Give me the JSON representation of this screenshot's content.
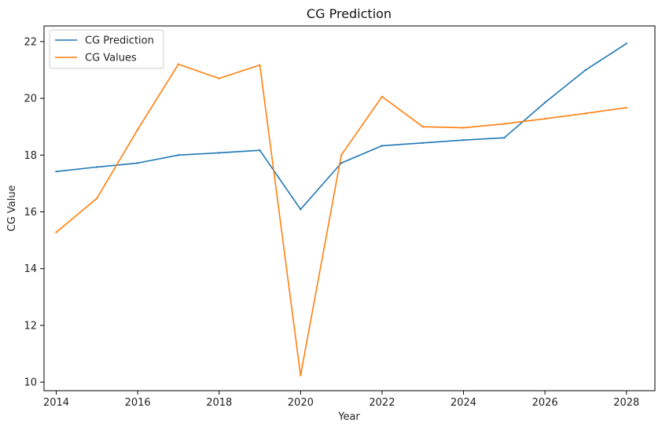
{
  "chart_data": {
    "type": "line",
    "title": "CG Prediction",
    "xlabel": "Year",
    "ylabel": "CG Value",
    "xlim": [
      2013.7,
      2028.7
    ],
    "ylim": [
      9.7,
      22.55
    ],
    "xticks": [
      2014,
      2016,
      2018,
      2020,
      2022,
      2024,
      2026,
      2028
    ],
    "yticks": [
      10,
      12,
      14,
      16,
      18,
      20,
      22
    ],
    "grid": false,
    "legend": "top-left",
    "series": [
      {
        "name": "CG Prediction",
        "color": "#1f77b4",
        "x": [
          2014,
          2015,
          2016,
          2017,
          2018,
          2019,
          2020,
          2021,
          2022,
          2023,
          2024,
          2025,
          2026,
          2027,
          2028
        ],
        "values": [
          17.42,
          17.58,
          17.72,
          18.0,
          18.08,
          18.17,
          16.09,
          17.72,
          18.33,
          18.43,
          18.53,
          18.61,
          19.85,
          21.0,
          21.93
        ]
      },
      {
        "name": "CG Values",
        "color": "#ff7f0e",
        "x": [
          2014,
          2015,
          2016,
          2017,
          2018,
          2019,
          2020,
          2021,
          2022,
          2023,
          2024,
          2025,
          2026,
          2027,
          2028
        ],
        "values": [
          15.28,
          16.48,
          18.9,
          21.2,
          20.7,
          21.17,
          10.24,
          18.0,
          20.06,
          19.0,
          18.96,
          19.1,
          19.28,
          19.47,
          19.67
        ]
      }
    ]
  }
}
